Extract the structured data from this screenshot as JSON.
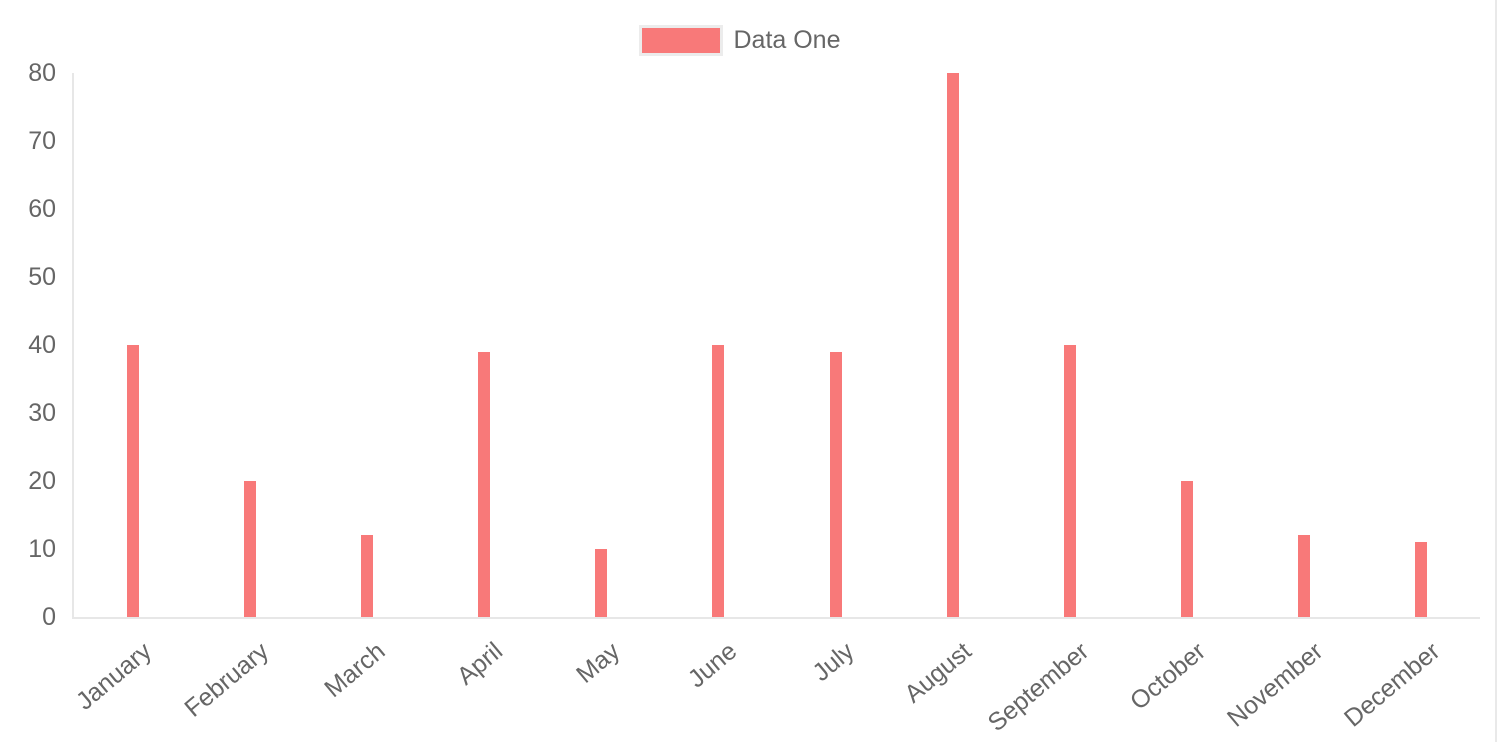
{
  "legend": {
    "items": [
      {
        "label": "Data One",
        "color": "#f87979"
      }
    ]
  },
  "chart_data": {
    "type": "bar",
    "title": "",
    "xlabel": "",
    "ylabel": "",
    "categories": [
      "January",
      "February",
      "March",
      "April",
      "May",
      "June",
      "July",
      "August",
      "September",
      "October",
      "November",
      "December"
    ],
    "series": [
      {
        "name": "Data One",
        "color": "#f87979",
        "values": [
          40,
          20,
          12,
          39,
          10,
          40,
          39,
          80,
          40,
          20,
          12,
          11
        ]
      }
    ],
    "ylim": [
      0,
      80
    ],
    "y_ticks": [
      0,
      10,
      20,
      30,
      40,
      50,
      60,
      70,
      80
    ],
    "grid": false,
    "legend_position": "top",
    "x_tick_rotation_deg": -40
  },
  "colors": {
    "background": "#ffffff",
    "bar": "#f87979",
    "axis_line": "#e7e7e7",
    "tick_label": "#666666",
    "legend_text": "#666666",
    "legend_swatch_border": "#ececec",
    "page_right_edge": "#e9e9e9"
  }
}
